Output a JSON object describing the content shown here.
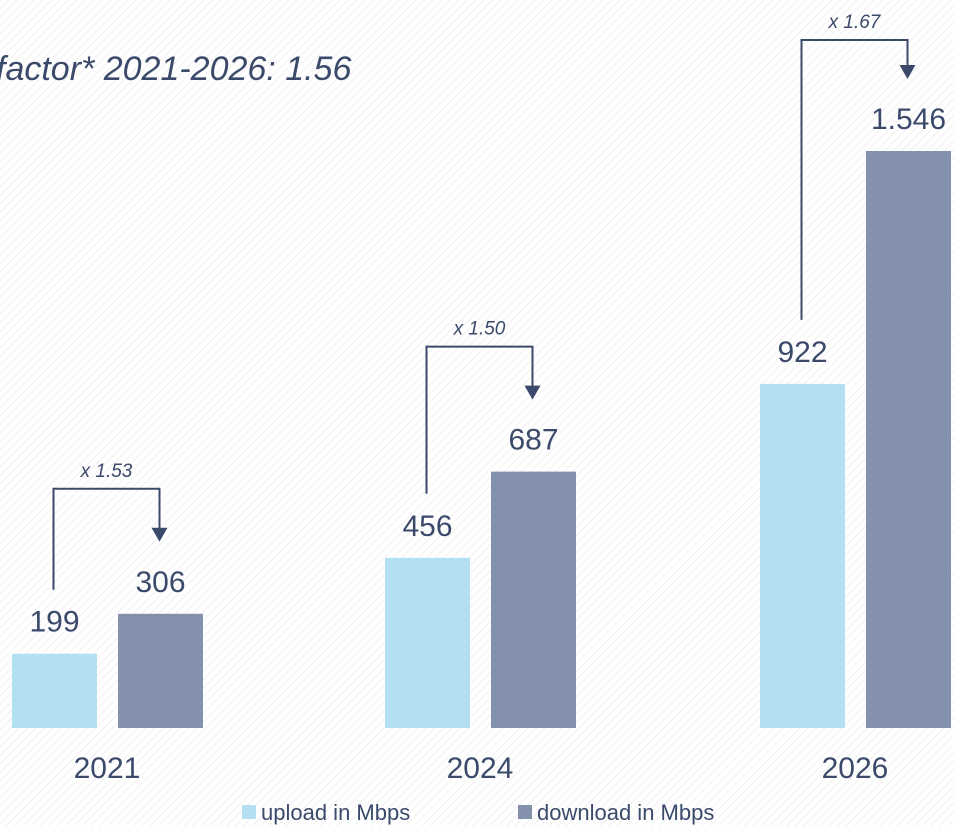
{
  "chart_data": {
    "type": "bar",
    "title": "factor* 2021-2026: 1.56",
    "categories": [
      "2021",
      "2024",
      "2026"
    ],
    "series": [
      {
        "name": "upload in Mbps",
        "color": "#b3dff2",
        "values": [
          199,
          456,
          922
        ]
      },
      {
        "name": "download in Mbps",
        "color": "#8391ad",
        "values": [
          306,
          687,
          1546
        ],
        "value_labels": [
          "306",
          "687",
          "1.546"
        ]
      }
    ],
    "annotations": [
      "x 1.53",
      "x 1.50",
      "x 1.67"
    ]
  }
}
